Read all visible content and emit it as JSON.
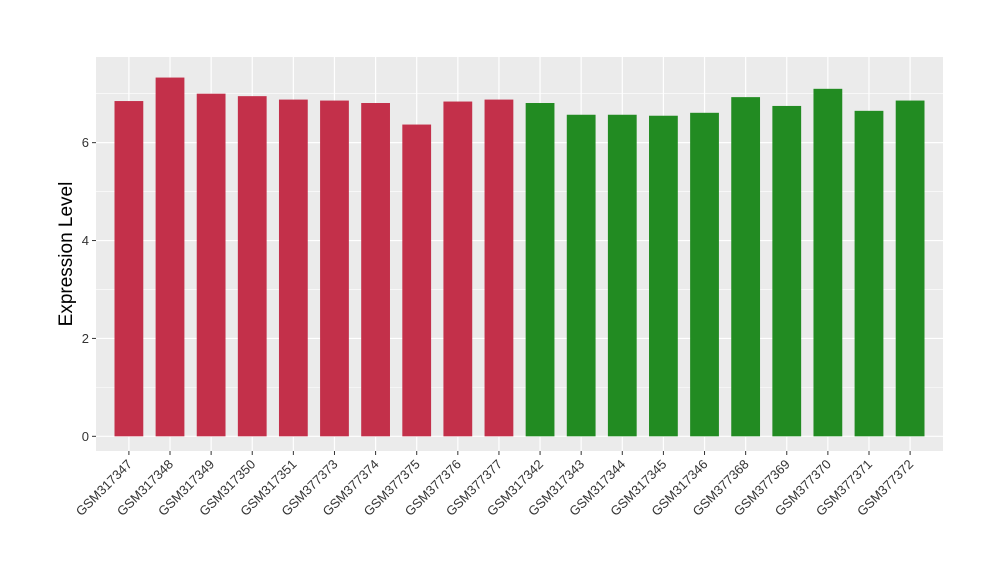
{
  "chart_data": {
    "type": "bar",
    "title": "",
    "xlabel": "",
    "ylabel": "Expression Level",
    "ylim": [
      -0.3,
      7.75
    ],
    "yticks": [
      0,
      2,
      4,
      6
    ],
    "grid": true,
    "legend": "none",
    "categories": [
      "GSM317347",
      "GSM317348",
      "GSM317349",
      "GSM317350",
      "GSM317351",
      "GSM377373",
      "GSM377374",
      "GSM377375",
      "GSM377376",
      "GSM377377",
      "GSM317342",
      "GSM317343",
      "GSM317344",
      "GSM317345",
      "GSM317346",
      "GSM377368",
      "GSM377369",
      "GSM377370",
      "GSM377371",
      "GSM377372"
    ],
    "values": [
      6.85,
      7.33,
      7.0,
      6.95,
      6.88,
      6.86,
      6.81,
      6.37,
      6.84,
      6.88,
      6.81,
      6.57,
      6.57,
      6.55,
      6.61,
      6.93,
      6.75,
      7.1,
      6.65,
      6.86
    ],
    "groups": [
      "a",
      "a",
      "a",
      "a",
      "a",
      "a",
      "a",
      "a",
      "a",
      "a",
      "b",
      "b",
      "b",
      "b",
      "b",
      "b",
      "b",
      "b",
      "b",
      "b"
    ],
    "colors": {
      "a": "#C3304A",
      "b": "#228B22"
    },
    "panel_color": "#EBEBEB",
    "grid_color": "#FFFFFF"
  }
}
